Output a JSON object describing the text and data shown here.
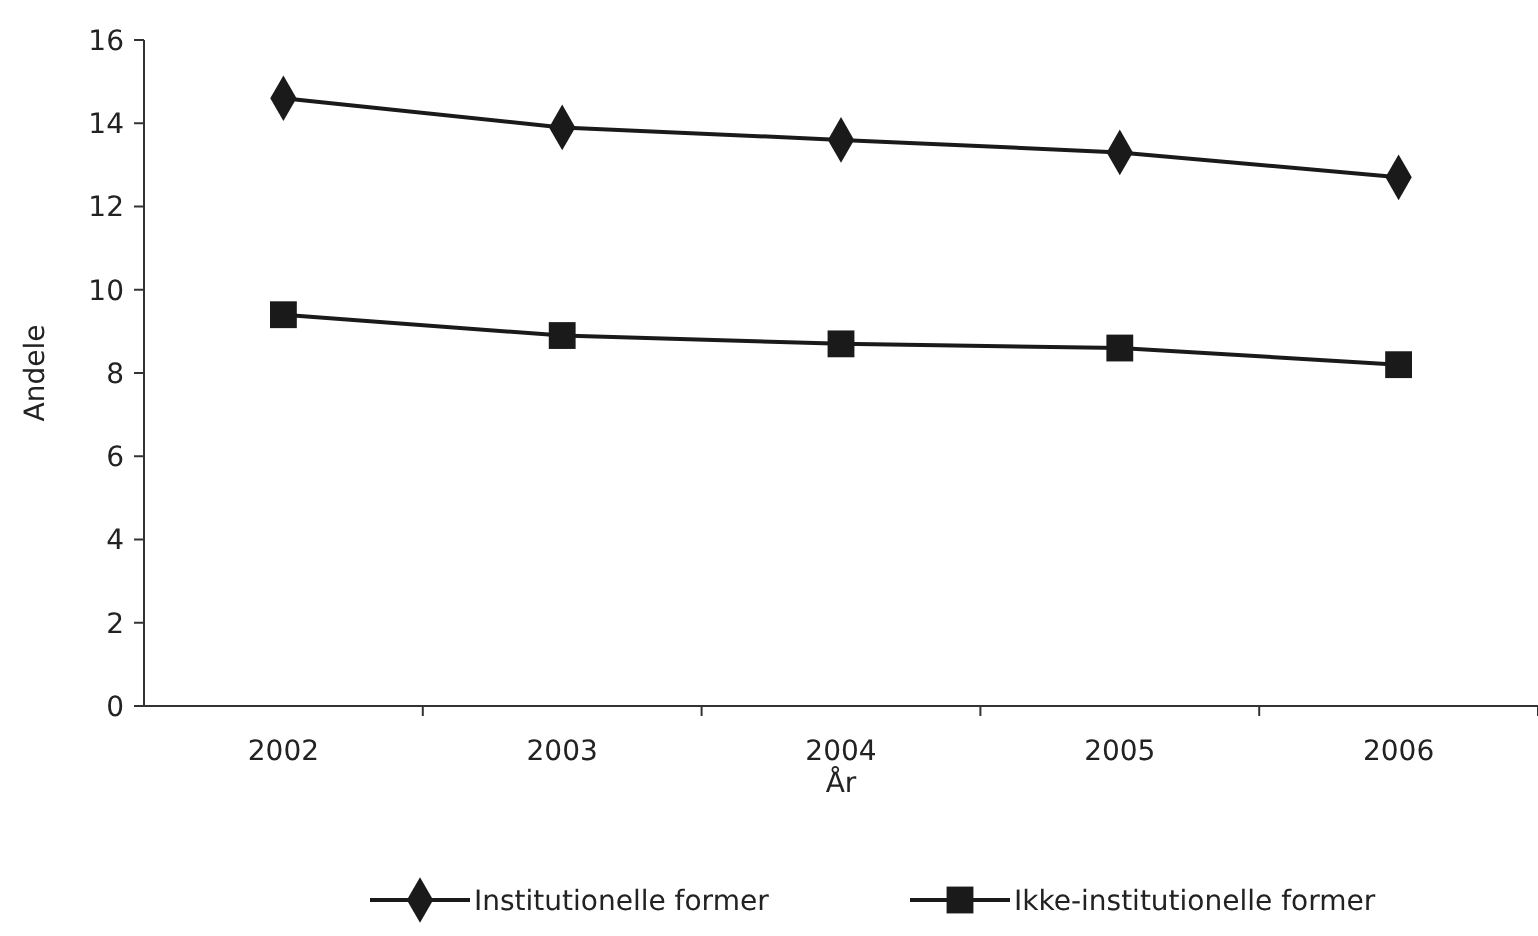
{
  "chart_data": {
    "type": "line",
    "xlabel": "År",
    "ylabel": "Andele",
    "categories": [
      "2002",
      "2003",
      "2004",
      "2005",
      "2006"
    ],
    "series": [
      {
        "name": "Institutionelle former",
        "color": "#1a1a1a",
        "marker": "diamond",
        "values": [
          14.6,
          13.9,
          13.6,
          13.3,
          12.7
        ]
      },
      {
        "name": "Ikke-institutionelle former",
        "color": "#1a1a1a",
        "marker": "square",
        "values": [
          9.4,
          8.9,
          8.7,
          8.6,
          8.2
        ]
      }
    ],
    "ylim": [
      0,
      16
    ],
    "yticks": [
      0,
      2,
      4,
      6,
      8,
      10,
      12,
      14,
      16
    ],
    "grid": false,
    "legend": "bottom",
    "line_style": "solid"
  }
}
